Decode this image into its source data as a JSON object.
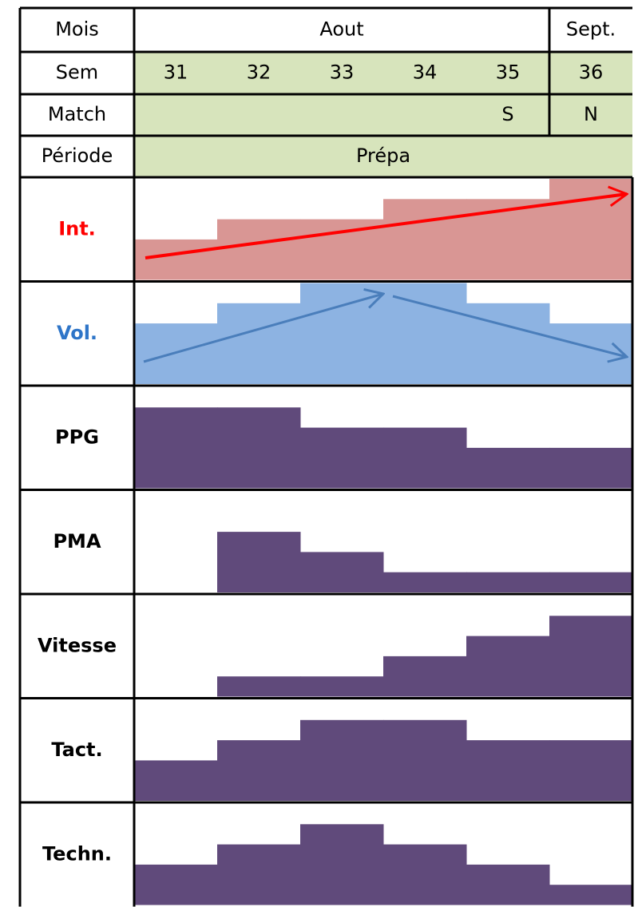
{
  "header": {
    "mois": {
      "label": "Mois",
      "cells": [
        "Aout",
        "Sept."
      ]
    },
    "sem": {
      "label": "Sem",
      "weeks": [
        "31",
        "32",
        "33",
        "34",
        "35",
        "36"
      ]
    },
    "match": {
      "label": "Match",
      "cells": [
        null,
        null,
        null,
        null,
        "S",
        "N"
      ]
    },
    "periode": {
      "label": "Période",
      "value": "Prépa"
    }
  },
  "chart_data": {
    "type": "step",
    "ylim": [
      0,
      5
    ],
    "series": [
      {
        "name": "Int.",
        "color": "#d99694",
        "label_color": "#ff0000",
        "values": [
          2,
          3,
          3,
          4,
          4,
          5
        ]
      },
      {
        "name": "Vol.",
        "color": "#8db3e2",
        "label_color": "#2e75c8",
        "values": [
          3,
          4,
          5,
          5,
          4,
          3
        ]
      },
      {
        "name": "PPG",
        "color": "#604a7b",
        "label_color": "#000000",
        "values": [
          4,
          4,
          3,
          3,
          2,
          2
        ]
      },
      {
        "name": "PMA",
        "color": "#604a7b",
        "label_color": "#000000",
        "values": [
          0,
          3,
          2,
          1,
          1,
          1
        ]
      },
      {
        "name": "Vitesse",
        "color": "#604a7b",
        "label_color": "#000000",
        "values": [
          0,
          1,
          1,
          2,
          3,
          4
        ]
      },
      {
        "name": "Tact.",
        "color": "#604a7b",
        "label_color": "#000000",
        "values": [
          2,
          3,
          4,
          4,
          3,
          3
        ]
      },
      {
        "name": "Techn.",
        "color": "#604a7b",
        "label_color": "#000000",
        "values": [
          2,
          3,
          4,
          3,
          2,
          1
        ]
      }
    ]
  }
}
